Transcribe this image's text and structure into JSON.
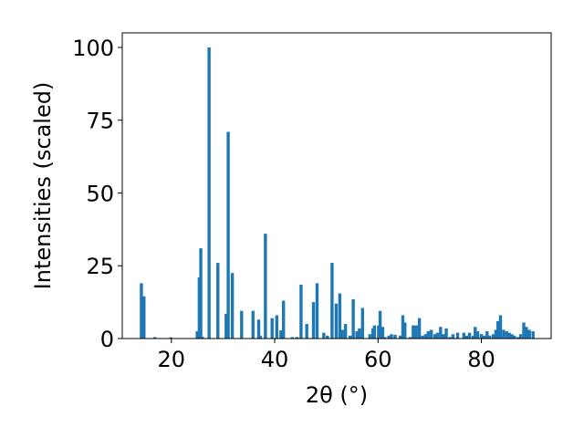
{
  "chart_data": {
    "type": "bar",
    "xlabel": "2θ (°)",
    "ylabel": "Intensities (scaled)",
    "xlim": [
      10.5,
      93.5
    ],
    "ylim": [
      0,
      105
    ],
    "xticks": [
      20,
      40,
      60,
      80
    ],
    "yticks": [
      0,
      25,
      50,
      75,
      100
    ],
    "grid": false,
    "bar_color": "#1f77b4",
    "bar_width": 0.6,
    "points": [
      [
        14.2,
        19
      ],
      [
        14.7,
        14.5
      ],
      [
        16.8,
        0.5
      ],
      [
        19.9,
        0.4
      ],
      [
        25.0,
        2.5
      ],
      [
        25.4,
        21
      ],
      [
        25.7,
        31
      ],
      [
        26.0,
        0.6
      ],
      [
        27.3,
        100
      ],
      [
        29.0,
        26
      ],
      [
        30.6,
        8.5
      ],
      [
        31.0,
        71
      ],
      [
        31.8,
        22.5
      ],
      [
        33.6,
        9.5
      ],
      [
        35.8,
        9.5
      ],
      [
        36.9,
        6.5
      ],
      [
        37.2,
        1.0
      ],
      [
        38.2,
        36
      ],
      [
        39.5,
        7
      ],
      [
        40.4,
        8
      ],
      [
        41.2,
        2.8
      ],
      [
        41.7,
        13
      ],
      [
        43.4,
        0.5
      ],
      [
        44.3,
        0.5
      ],
      [
        45.1,
        18.5
      ],
      [
        46.2,
        5.0
      ],
      [
        47.5,
        12.5
      ],
      [
        48.2,
        19
      ],
      [
        49.5,
        2.0
      ],
      [
        50.2,
        1.0
      ],
      [
        51.1,
        26
      ],
      [
        51.9,
        12
      ],
      [
        52.6,
        15.5
      ],
      [
        53.1,
        3.0
      ],
      [
        53.7,
        5.0
      ],
      [
        54.6,
        1.0
      ],
      [
        55.2,
        13.5
      ],
      [
        55.9,
        2.5
      ],
      [
        56.4,
        3.5
      ],
      [
        57.0,
        10.5
      ],
      [
        58.4,
        1.5
      ],
      [
        59.0,
        3.5
      ],
      [
        59.3,
        4.5
      ],
      [
        60.1,
        4.5
      ],
      [
        60.4,
        9.5
      ],
      [
        60.9,
        4
      ],
      [
        61.3,
        0.5
      ],
      [
        62.1,
        1.0
      ],
      [
        62.6,
        1.5
      ],
      [
        63.3,
        1.3
      ],
      [
        64.3,
        1.0
      ],
      [
        64.8,
        8
      ],
      [
        65.2,
        5.5
      ],
      [
        66.2,
        0.5
      ],
      [
        66.8,
        4.5
      ],
      [
        67.4,
        4.5
      ],
      [
        68.0,
        7
      ],
      [
        68.6,
        1.0
      ],
      [
        69.2,
        1.5
      ],
      [
        69.7,
        2.5
      ],
      [
        70.3,
        3.0
      ],
      [
        71.0,
        1.5
      ],
      [
        71.5,
        2.0
      ],
      [
        72.1,
        4.0
      ],
      [
        72.7,
        1.5
      ],
      [
        73.2,
        3.5
      ],
      [
        73.9,
        0.5
      ],
      [
        74.5,
        1.5
      ],
      [
        75.4,
        2.0
      ],
      [
        76.6,
        2.0
      ],
      [
        77.2,
        1.0
      ],
      [
        77.7,
        2.0
      ],
      [
        78.4,
        1.0
      ],
      [
        78.8,
        4.0
      ],
      [
        79.3,
        2.5
      ],
      [
        80.0,
        1.5
      ],
      [
        80.5,
        1.0
      ],
      [
        81.1,
        2.5
      ],
      [
        81.6,
        1.0
      ],
      [
        82.3,
        1.5
      ],
      [
        82.8,
        3.0
      ],
      [
        83.2,
        6.0
      ],
      [
        83.7,
        8.0
      ],
      [
        84.3,
        3.0
      ],
      [
        84.9,
        2.5
      ],
      [
        85.4,
        2.0
      ],
      [
        85.9,
        1.5
      ],
      [
        86.4,
        1.0
      ],
      [
        87.1,
        0.5
      ],
      [
        87.6,
        1.5
      ],
      [
        88.2,
        5.5
      ],
      [
        88.7,
        4.0
      ],
      [
        89.3,
        3.0
      ],
      [
        90.0,
        2.5
      ]
    ]
  }
}
